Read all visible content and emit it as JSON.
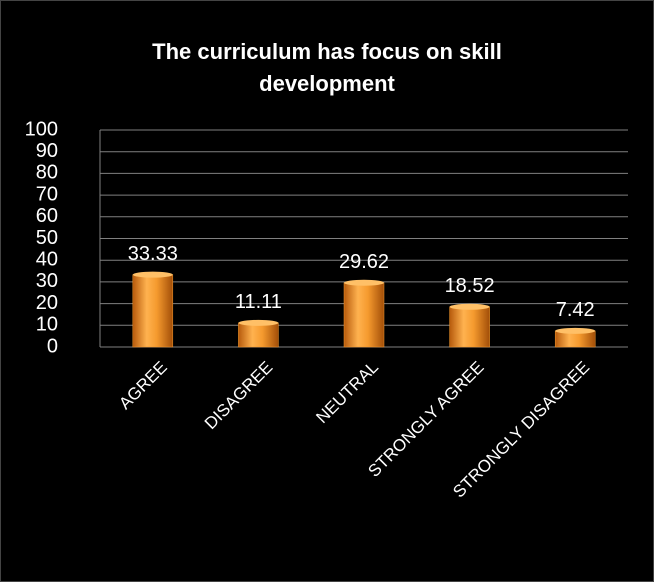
{
  "chart_data": {
    "type": "bar",
    "title": "The curriculum has focus on skill development",
    "categories": [
      "AGREE",
      "DISAGREE",
      "NEUTRAL",
      "STRONGLY AGREE",
      "STRONGLY DISAGREE"
    ],
    "values": [
      33.33,
      11.11,
      29.62,
      18.52,
      7.42
    ],
    "color": "#f59a2e",
    "ylim": [
      0,
      100
    ],
    "yticks": [
      0,
      10,
      20,
      30,
      40,
      50,
      60,
      70,
      80,
      90,
      100
    ],
    "grid": true
  }
}
